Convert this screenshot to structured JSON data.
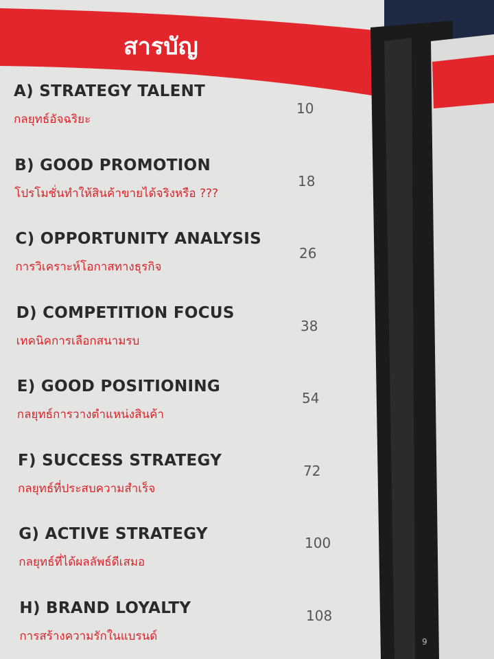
{
  "header": {
    "title": "สารบัญ"
  },
  "entries": [
    {
      "title": "A) STRATEGY TALENT",
      "subtitle": "กลยุทธ์อัจฉริยะ",
      "page": 10
    },
    {
      "title": "B) GOOD PROMOTION",
      "subtitle": "โปรโมชั่นทำให้สินค้าขายได้จริงหรือ ???",
      "page": 18
    },
    {
      "title": "C) OPPORTUNITY ANALYSIS",
      "subtitle": "การวิเคราะห์โอกาสทางธุรกิจ",
      "page": 26
    },
    {
      "title": "D) COMPETITION FOCUS",
      "subtitle": "เทคนิคการเลือกสนามรบ",
      "page": 38
    },
    {
      "title": "E) GOOD POSITIONING",
      "subtitle": "กลยุทธ์การวางตำแหน่งสินค้า",
      "page": 54
    },
    {
      "title": "F) SUCCESS STRATEGY",
      "subtitle": "กลยุทธ์ที่ประสบความสำเร็จ",
      "page": 72
    },
    {
      "title": "G) ACTIVE STRATEGY",
      "subtitle": "กลยุทธ์ที่ได้ผลลัพธ์ดีเสมอ",
      "page": 100
    },
    {
      "title": "H) BRAND LOYALTY",
      "subtitle": "การสร้างความรักในแบรนด์",
      "page": 108
    }
  ],
  "side_page": {
    "number": 9
  }
}
